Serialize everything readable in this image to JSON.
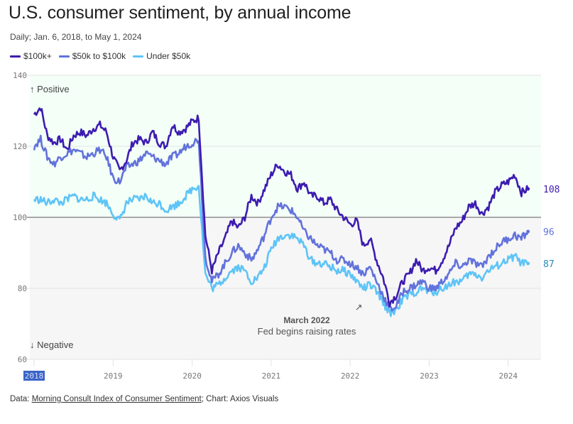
{
  "header": {
    "title": "U.S. consumer sentiment, by annual income",
    "subtitle": "Daily; Jan. 6, 2018, to May 1, 2024"
  },
  "legend": [
    {
      "label": "$100k+",
      "color": "#3d1cb0"
    },
    {
      "label": "$50k to $100k",
      "color": "#6272dc"
    },
    {
      "label": "Under $50k",
      "color": "#5ec4f7"
    }
  ],
  "zones": {
    "positive": "↑ Positive",
    "negative": "↓ Negative",
    "positive_bg": "#f3fff7",
    "negative_bg": "#f6f6f6"
  },
  "annotation": {
    "title": "March 2022",
    "text": "Fed begins raising rates",
    "arrow": "↗"
  },
  "footer": {
    "prefix": "Data: ",
    "link": "Morning Consult Index of Consumer Sentiment",
    "suffix": "; Chart: Axios Visuals"
  },
  "chart_data": {
    "type": "line",
    "title": "U.S. consumer sentiment, by annual income",
    "subtitle": "Daily; Jan. 6, 2018, to May 1, 2024",
    "xlabel": "",
    "ylabel": "",
    "ylim": [
      60,
      140
    ],
    "xlim": [
      2018.0,
      2024.4
    ],
    "yticks": [
      60,
      80,
      100,
      120,
      140
    ],
    "xticks": [
      2018,
      2019,
      2020,
      2021,
      2022,
      2023,
      2024
    ],
    "xtick_labels": [
      "2018",
      "2019",
      "2020",
      "2021",
      "2022",
      "2023",
      "2024"
    ],
    "baseline": 100,
    "grid": true,
    "legend_position": "top-left",
    "x_step_months": 1,
    "x_start": "2018-01",
    "series": [
      {
        "name": "$100k+",
        "color": "#3d1cb0",
        "end_label": "108",
        "values": [
          129,
          131,
          123,
          121,
          122,
          119,
          123,
          124,
          123,
          125,
          126,
          124,
          117,
          113,
          116,
          121,
          122,
          121,
          124,
          121,
          120,
          126,
          124,
          125,
          127,
          128,
          95,
          85,
          90,
          94,
          99,
          97,
          100,
          106,
          104,
          108,
          112,
          115,
          113,
          112,
          108,
          110,
          106,
          106,
          104,
          105,
          102,
          100,
          98,
          99,
          92,
          94,
          88,
          83,
          76,
          78,
          82,
          84,
          88,
          85,
          86,
          85,
          88,
          92,
          97,
          99,
          103,
          104,
          101,
          103,
          107,
          109,
          110,
          112,
          107,
          108
        ]
      },
      {
        "name": "$50k to $100k",
        "color": "#6272dc",
        "end_label": "96",
        "values": [
          120,
          122,
          117,
          115,
          117,
          118,
          119,
          118,
          117,
          118,
          119,
          117,
          111,
          110,
          114,
          115,
          116,
          118,
          117,
          116,
          115,
          117,
          118,
          120,
          121,
          122,
          89,
          82,
          84,
          87,
          90,
          92,
          90,
          88,
          91,
          95,
          100,
          103,
          103,
          102,
          100,
          96,
          94,
          92,
          91,
          90,
          88,
          88,
          87,
          86,
          84,
          86,
          82,
          78,
          74,
          75,
          79,
          80,
          81,
          82,
          80,
          80,
          82,
          84,
          87,
          86,
          88,
          87,
          86,
          89,
          91,
          93,
          94,
          95,
          94,
          96
        ]
      },
      {
        "name": "Under $50k",
        "color": "#5ec4f7",
        "end_label": "87",
        "values": [
          105,
          105,
          104,
          105,
          104,
          105,
          106,
          105,
          105,
          106,
          105,
          104,
          101,
          99,
          104,
          105,
          105,
          106,
          104,
          104,
          102,
          103,
          104,
          106,
          108,
          109,
          84,
          80,
          81,
          83,
          85,
          86,
          85,
          82,
          83,
          86,
          91,
          94,
          95,
          95,
          94,
          92,
          88,
          87,
          87,
          86,
          85,
          85,
          84,
          82,
          80,
          81,
          79,
          76,
          73,
          74,
          77,
          78,
          79,
          80,
          79,
          79,
          80,
          81,
          82,
          82,
          84,
          84,
          83,
          85,
          86,
          87,
          88,
          89,
          87,
          87
        ]
      }
    ],
    "annotations": [
      {
        "x": "2022-03",
        "title": "March 2022",
        "text": "Fed begins raising rates"
      }
    ],
    "zone_labels": [
      "↑ Positive",
      "↓ Negative"
    ]
  }
}
